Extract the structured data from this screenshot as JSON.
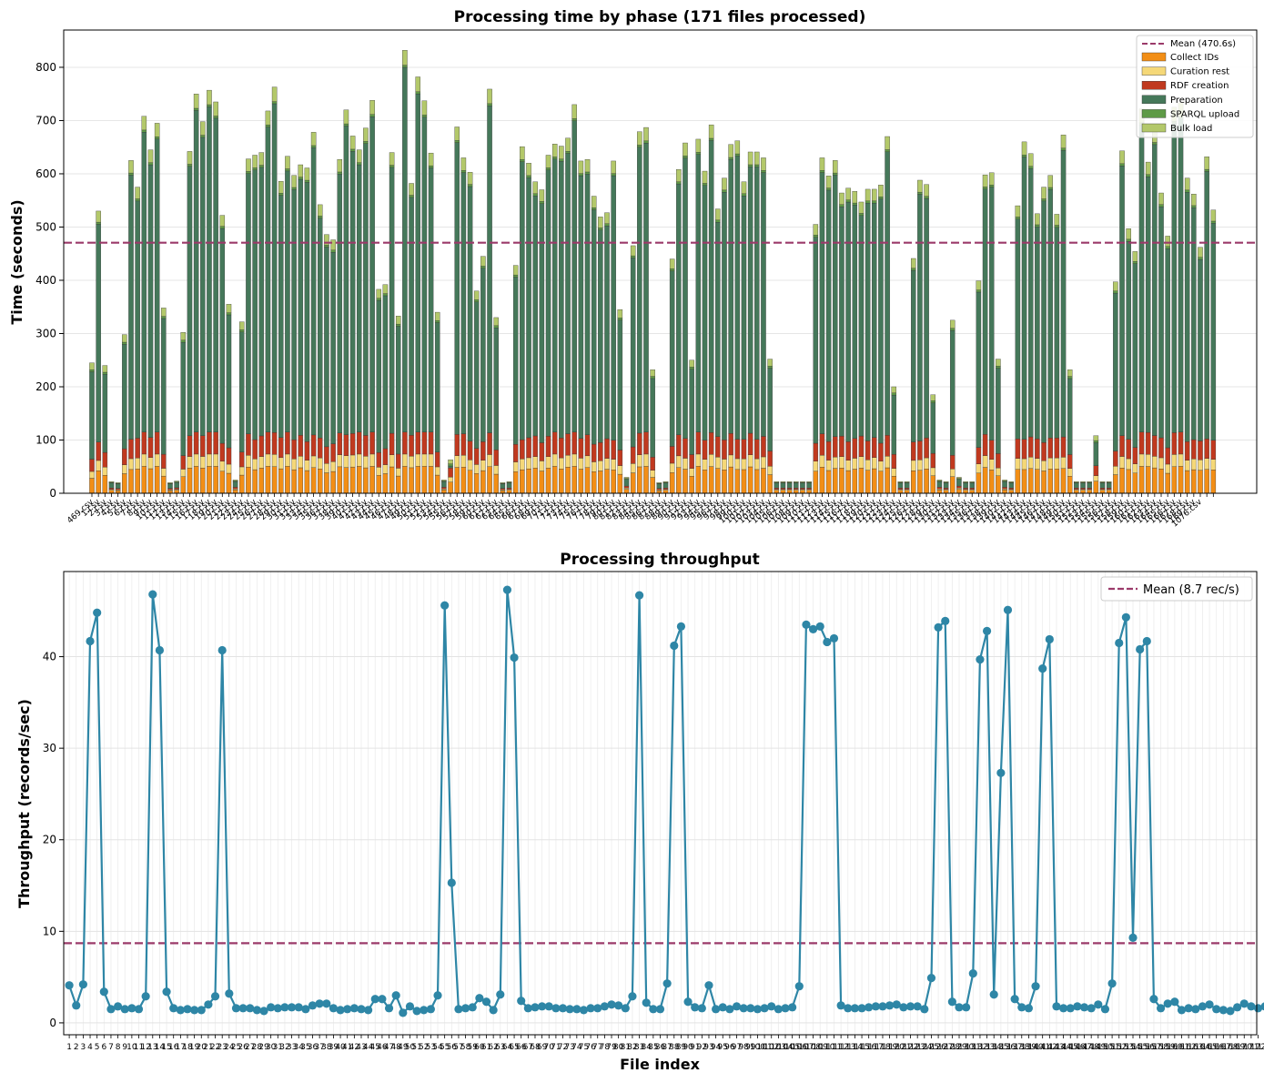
{
  "figure": {
    "background": "#ffffff"
  },
  "chart_data": [
    {
      "type": "bar",
      "stacked": true,
      "title": "Processing time by phase (171 files processed)",
      "xlabel": "",
      "ylabel": "Time (seconds)",
      "ylim": [
        0,
        870
      ],
      "yticks": [
        0,
        100,
        200,
        300,
        400,
        500,
        600,
        700,
        800
      ],
      "grid": true,
      "legend_position": "top-right",
      "categories": [
        "469.csv",
        "1.csv",
        "2.csv",
        "3.csv",
        "4.csv",
        "5.csv",
        "6.csv",
        "7.csv",
        "8.csv",
        "9.csv",
        "10.csv",
        "11.csv",
        "12.csv",
        "13.csv",
        "14.csv",
        "15.csv",
        "16.csv",
        "17.csv",
        "18.csv",
        "19.csv",
        "20.csv",
        "21.csv",
        "22.csv",
        "23.csv",
        "24.csv",
        "25.csv",
        "26.csv",
        "27.csv",
        "28.csv",
        "29.csv",
        "30.csv",
        "31.csv",
        "32.csv",
        "33.csv",
        "34.csv",
        "35.csv",
        "36.csv",
        "37.csv",
        "38.csv",
        "39.csv",
        "40.csv",
        "41.csv",
        "42.csv",
        "43.csv",
        "44.csv",
        "45.csv",
        "46.csv",
        "47.csv",
        "48.csv",
        "49.csv",
        "50.csv",
        "51.csv",
        "52.csv",
        "53.csv",
        "54.csv",
        "55.csv",
        "56.csv",
        "57.csv",
        "58.csv",
        "59.csv",
        "60.csv",
        "61.csv",
        "62.csv",
        "63.csv",
        "64.csv",
        "65.csv",
        "66.csv",
        "67.csv",
        "68.csv",
        "69.csv",
        "70.csv",
        "71.csv",
        "72.csv",
        "73.csv",
        "74.csv",
        "75.csv",
        "76.csv",
        "77.csv",
        "78.csv",
        "79.csv",
        "80.csv",
        "81.csv",
        "82.csv",
        "83.csv",
        "84.csv",
        "85.csv",
        "86.csv",
        "87.csv",
        "88.csv",
        "89.csv",
        "90.csv",
        "91.csv",
        "92.csv",
        "93.csv",
        "94.csv",
        "95.csv",
        "96.csv",
        "97.csv",
        "98.csv",
        "99.csv",
        "100.csv",
        "101.csv",
        "102.csv",
        "103.csv",
        "104.csv",
        "105.csv",
        "106.csv",
        "107.csv",
        "108.csv",
        "109.csv",
        "110.csv",
        "111.csv",
        "112.csv",
        "113.csv",
        "114.csv",
        "115.csv",
        "116.csv",
        "117.csv",
        "118.csv",
        "119.csv",
        "120.csv",
        "121.csv",
        "122.csv",
        "123.csv",
        "124.csv",
        "125.csv",
        "126.csv",
        "127.csv",
        "128.csv",
        "129.csv",
        "130.csv",
        "131.csv",
        "132.csv",
        "133.csv",
        "134.csv",
        "135.csv",
        "136.csv",
        "137.csv",
        "138.csv",
        "139.csv",
        "140.csv",
        "141.csv",
        "142.csv",
        "143.csv",
        "144.csv",
        "145.csv",
        "146.csv",
        "147.csv",
        "148.csv",
        "149.csv",
        "150.csv",
        "151.csv",
        "152.csv",
        "153.csv",
        "154.csv",
        "155.csv",
        "156.csv",
        "157.csv",
        "158.csv",
        "159.csv",
        "160.csv",
        "161.csv",
        "162.csv",
        "163.csv",
        "164.csv",
        "165.csv",
        "166.csv",
        "167.csv",
        "168.csv",
        "169.csv",
        "1076.csv"
      ],
      "totals": [
        245,
        530,
        240,
        22,
        20,
        298,
        625,
        575,
        708,
        645,
        695,
        348,
        20,
        23,
        302,
        642,
        750,
        698,
        757,
        735,
        522,
        355,
        25,
        322,
        628,
        635,
        640,
        718,
        763,
        586,
        633,
        597,
        617,
        611,
        678,
        542,
        486,
        476,
        627,
        720,
        671,
        645,
        686,
        738,
        383,
        392,
        640,
        333,
        832,
        582,
        782,
        737,
        639,
        340,
        25,
        63,
        688,
        630,
        603,
        380,
        445,
        759,
        330,
        20,
        22,
        428,
        651,
        620,
        585,
        570,
        635,
        656,
        652,
        667,
        730,
        624,
        627,
        558,
        519,
        527,
        624,
        345,
        30,
        465,
        679,
        687,
        232,
        20,
        22,
        440,
        608,
        658,
        250,
        665,
        605,
        692,
        534,
        592,
        655,
        662,
        585,
        641,
        641,
        630,
        252,
        22,
        22,
        22,
        22,
        22,
        22,
        505,
        630,
        596,
        625,
        564,
        573,
        567,
        547,
        571,
        571,
        579,
        670,
        200,
        22,
        22,
        441,
        588,
        580,
        185,
        25,
        22,
        325,
        30,
        22,
        22,
        399,
        598,
        602,
        252,
        25,
        22,
        540,
        660,
        638,
        525,
        575,
        597,
        524,
        673,
        232,
        22,
        22,
        22,
        108,
        22,
        22,
        397,
        643,
        497,
        454,
        722,
        622,
        684,
        564,
        483,
        725,
        734,
        592,
        562,
        462,
        632,
        532
      ],
      "segment_colors": {
        "collect_ids": "#f28e16",
        "curation_rest": "#f5d878",
        "rdf_creation": "#c0391f",
        "preparation": "#45785a",
        "sparql_upload": "#5e9a46",
        "bulk_load": "#b3c86a"
      },
      "series_labels": [
        "Collect IDs",
        "Curation rest",
        "RDF creation",
        "Preparation",
        "SPARQL upload",
        "Bulk load"
      ],
      "mean_value": 470.6,
      "mean_label": "Mean (470.6s)",
      "mean_color": "#9b3a6a",
      "tick_label_prefix": "file_"
    },
    {
      "type": "line",
      "title": "Processing throughput",
      "xlabel": "File index",
      "ylabel": "Throughput (records/sec)",
      "ylim": [
        -1.3,
        49.3
      ],
      "yticks": [
        0,
        10,
        20,
        30,
        40
      ],
      "xlim": [
        0.2,
        171.8
      ],
      "grid": true,
      "legend_position": "top-right",
      "line_color": "#2e86a6",
      "x_start": 1,
      "values": [
        4.1,
        1.9,
        4.2,
        41.7,
        44.8,
        3.4,
        1.5,
        1.8,
        1.5,
        1.6,
        1.5,
        2.9,
        46.8,
        40.7,
        3.4,
        1.6,
        1.4,
        1.5,
        1.4,
        1.4,
        2.0,
        2.9,
        40.7,
        3.2,
        1.6,
        1.6,
        1.6,
        1.4,
        1.3,
        1.7,
        1.6,
        1.7,
        1.7,
        1.7,
        1.5,
        1.9,
        2.1,
        2.1,
        1.6,
        1.4,
        1.5,
        1.6,
        1.5,
        1.4,
        2.6,
        2.6,
        1.6,
        3.0,
        1.1,
        1.8,
        1.3,
        1.4,
        1.5,
        3.0,
        45.6,
        15.3,
        1.5,
        1.6,
        1.7,
        2.7,
        2.3,
        1.4,
        3.1,
        47.3,
        39.9,
        2.4,
        1.6,
        1.7,
        1.8,
        1.8,
        1.6,
        1.6,
        1.5,
        1.5,
        1.4,
        1.6,
        1.6,
        1.8,
        2.0,
        1.9,
        1.6,
        2.9,
        46.7,
        2.2,
        1.5,
        1.5,
        4.3,
        41.2,
        43.3,
        2.3,
        1.7,
        1.6,
        4.1,
        1.5,
        1.7,
        1.5,
        1.8,
        1.6,
        1.6,
        1.5,
        1.6,
        1.8,
        1.5,
        1.6,
        1.7,
        4.0,
        43.5,
        43.0,
        43.3,
        41.6,
        42.0,
        1.9,
        1.6,
        1.6,
        1.6,
        1.7,
        1.8,
        1.8,
        1.9,
        2.0,
        1.7,
        1.8,
        1.8,
        1.5,
        4.9,
        43.2,
        43.9,
        2.3,
        1.7,
        1.7,
        5.4,
        39.7,
        42.8,
        3.1,
        27.3,
        45.1,
        2.6,
        1.7,
        1.6,
        4.0,
        38.7,
        41.9,
        1.8,
        1.6,
        1.6,
        1.8,
        1.7,
        1.6,
        2.0,
        1.5,
        4.3,
        41.5,
        44.3,
        9.3,
        40.8,
        41.7,
        2.6,
        1.6,
        2.1,
        2.3,
        1.4,
        1.6,
        1.5,
        1.8,
        2.0,
        1.5,
        1.4,
        1.3,
        1.7,
        2.1,
        1.8,
        1.6,
        1.8
      ],
      "mean_value": 8.7,
      "mean_label": "Mean (8.7 rec/s)",
      "mean_color": "#9b3a6a"
    }
  ]
}
